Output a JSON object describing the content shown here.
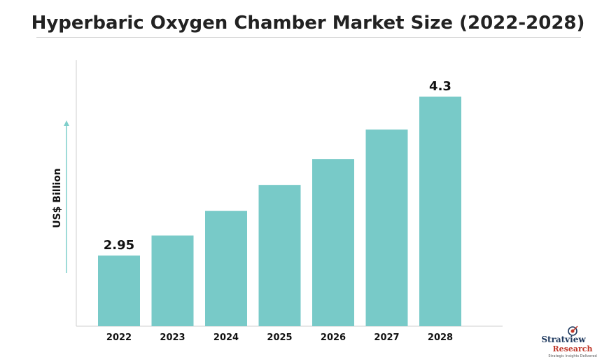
{
  "chart_data": {
    "type": "bar",
    "title": "Hyperbaric Oxygen Chamber Market Size (2022-2028)",
    "ylabel": "US$ Billion",
    "xlabel": "",
    "categories": [
      "2022",
      "2023",
      "2024",
      "2025",
      "2026",
      "2027",
      "2028"
    ],
    "values": [
      2.95,
      3.12,
      3.33,
      3.55,
      3.77,
      4.02,
      4.3
    ],
    "data_labels": [
      "2.95",
      "",
      "",
      "",
      "",
      "",
      "4.3"
    ],
    "ylim": [
      0,
      4.3
    ],
    "grid": false,
    "bar_color": "#78cac8"
  },
  "logo": {
    "name": "Stratview",
    "sub": "Research",
    "tagline": "Strategic Insights Delivered"
  }
}
